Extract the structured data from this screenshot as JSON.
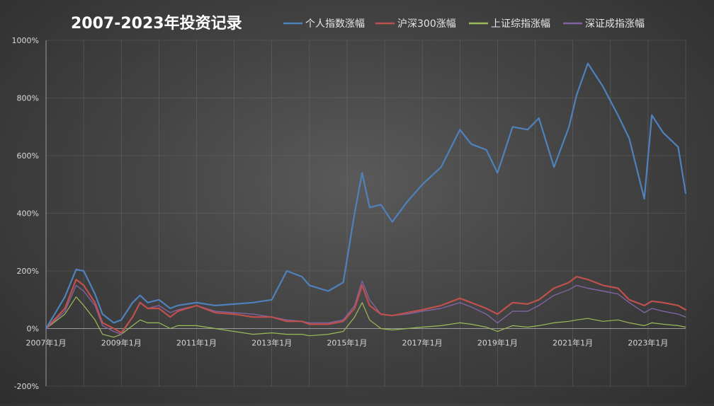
{
  "chart_data": {
    "type": "line",
    "title": "2007-2023年投资记录",
    "xlabel": "",
    "ylabel": "",
    "x_tick_labels": [
      "2007年1月",
      "2009年1月",
      "2011年1月",
      "2013年1月",
      "2015年1月",
      "2017年1月",
      "2019年1月",
      "2021年1月",
      "2023年1月"
    ],
    "y_tick_labels": [
      "1000%",
      "800%",
      "600%",
      "400%",
      "200%",
      "0%",
      "-200%"
    ],
    "ylim": [
      -200,
      1000
    ],
    "xlim": [
      2007.0,
      2024.0
    ],
    "grid": true,
    "legend_position": "top",
    "x": [
      2007.0,
      2007.5,
      2007.8,
      2008.0,
      2008.3,
      2008.5,
      2008.8,
      2009.0,
      2009.3,
      2009.5,
      2009.7,
      2010.0,
      2010.3,
      2010.5,
      2011.0,
      2011.5,
      2012.0,
      2012.5,
      2013.0,
      2013.4,
      2013.8,
      2014.0,
      2014.5,
      2014.9,
      2015.2,
      2015.4,
      2015.6,
      2015.9,
      2016.2,
      2016.6,
      2017.0,
      2017.5,
      2018.0,
      2018.3,
      2018.7,
      2019.0,
      2019.4,
      2019.8,
      2020.1,
      2020.5,
      2020.9,
      2021.1,
      2021.4,
      2021.8,
      2022.2,
      2022.5,
      2022.9,
      2023.1,
      2023.4,
      2023.8,
      2024.0
    ],
    "series": [
      {
        "name": "个人指数涨幅",
        "color": "#4f81bd",
        "values": [
          0,
          110,
          205,
          200,
          120,
          50,
          20,
          30,
          90,
          115,
          90,
          100,
          70,
          80,
          90,
          80,
          85,
          90,
          100,
          200,
          180,
          150,
          130,
          160,
          400,
          540,
          420,
          430,
          370,
          440,
          500,
          560,
          690,
          640,
          620,
          540,
          700,
          690,
          730,
          560,
          700,
          810,
          920,
          840,
          740,
          660,
          450,
          740,
          680,
          630,
          470
        ]
      },
      {
        "name": "沪深300涨幅",
        "color": "#c0504d",
        "values": [
          0,
          70,
          170,
          150,
          90,
          20,
          0,
          -15,
          40,
          90,
          70,
          70,
          40,
          60,
          80,
          55,
          50,
          40,
          40,
          25,
          25,
          15,
          15,
          25,
          70,
          150,
          80,
          50,
          45,
          55,
          65,
          80,
          105,
          90,
          70,
          50,
          90,
          85,
          100,
          140,
          160,
          180,
          170,
          150,
          140,
          100,
          80,
          95,
          90,
          80,
          65
        ]
      },
      {
        "name": "上证综指涨幅",
        "color": "#9bbb59",
        "values": [
          0,
          50,
          110,
          80,
          30,
          -20,
          -30,
          -20,
          10,
          30,
          20,
          20,
          0,
          10,
          10,
          0,
          -10,
          -20,
          -15,
          -20,
          -20,
          -25,
          -20,
          -10,
          40,
          90,
          30,
          0,
          -5,
          0,
          5,
          10,
          20,
          15,
          5,
          -10,
          10,
          5,
          10,
          20,
          25,
          30,
          35,
          25,
          30,
          20,
          10,
          20,
          15,
          10,
          5
        ]
      },
      {
        "name": "深证成指涨幅",
        "color": "#8064a2",
        "values": [
          0,
          60,
          150,
          130,
          80,
          10,
          -10,
          -20,
          40,
          90,
          70,
          80,
          55,
          65,
          80,
          60,
          55,
          50,
          40,
          30,
          25,
          20,
          20,
          30,
          80,
          165,
          100,
          50,
          45,
          50,
          60,
          70,
          90,
          75,
          50,
          20,
          60,
          60,
          80,
          115,
          135,
          150,
          140,
          130,
          120,
          90,
          55,
          70,
          60,
          50,
          40
        ]
      }
    ]
  }
}
